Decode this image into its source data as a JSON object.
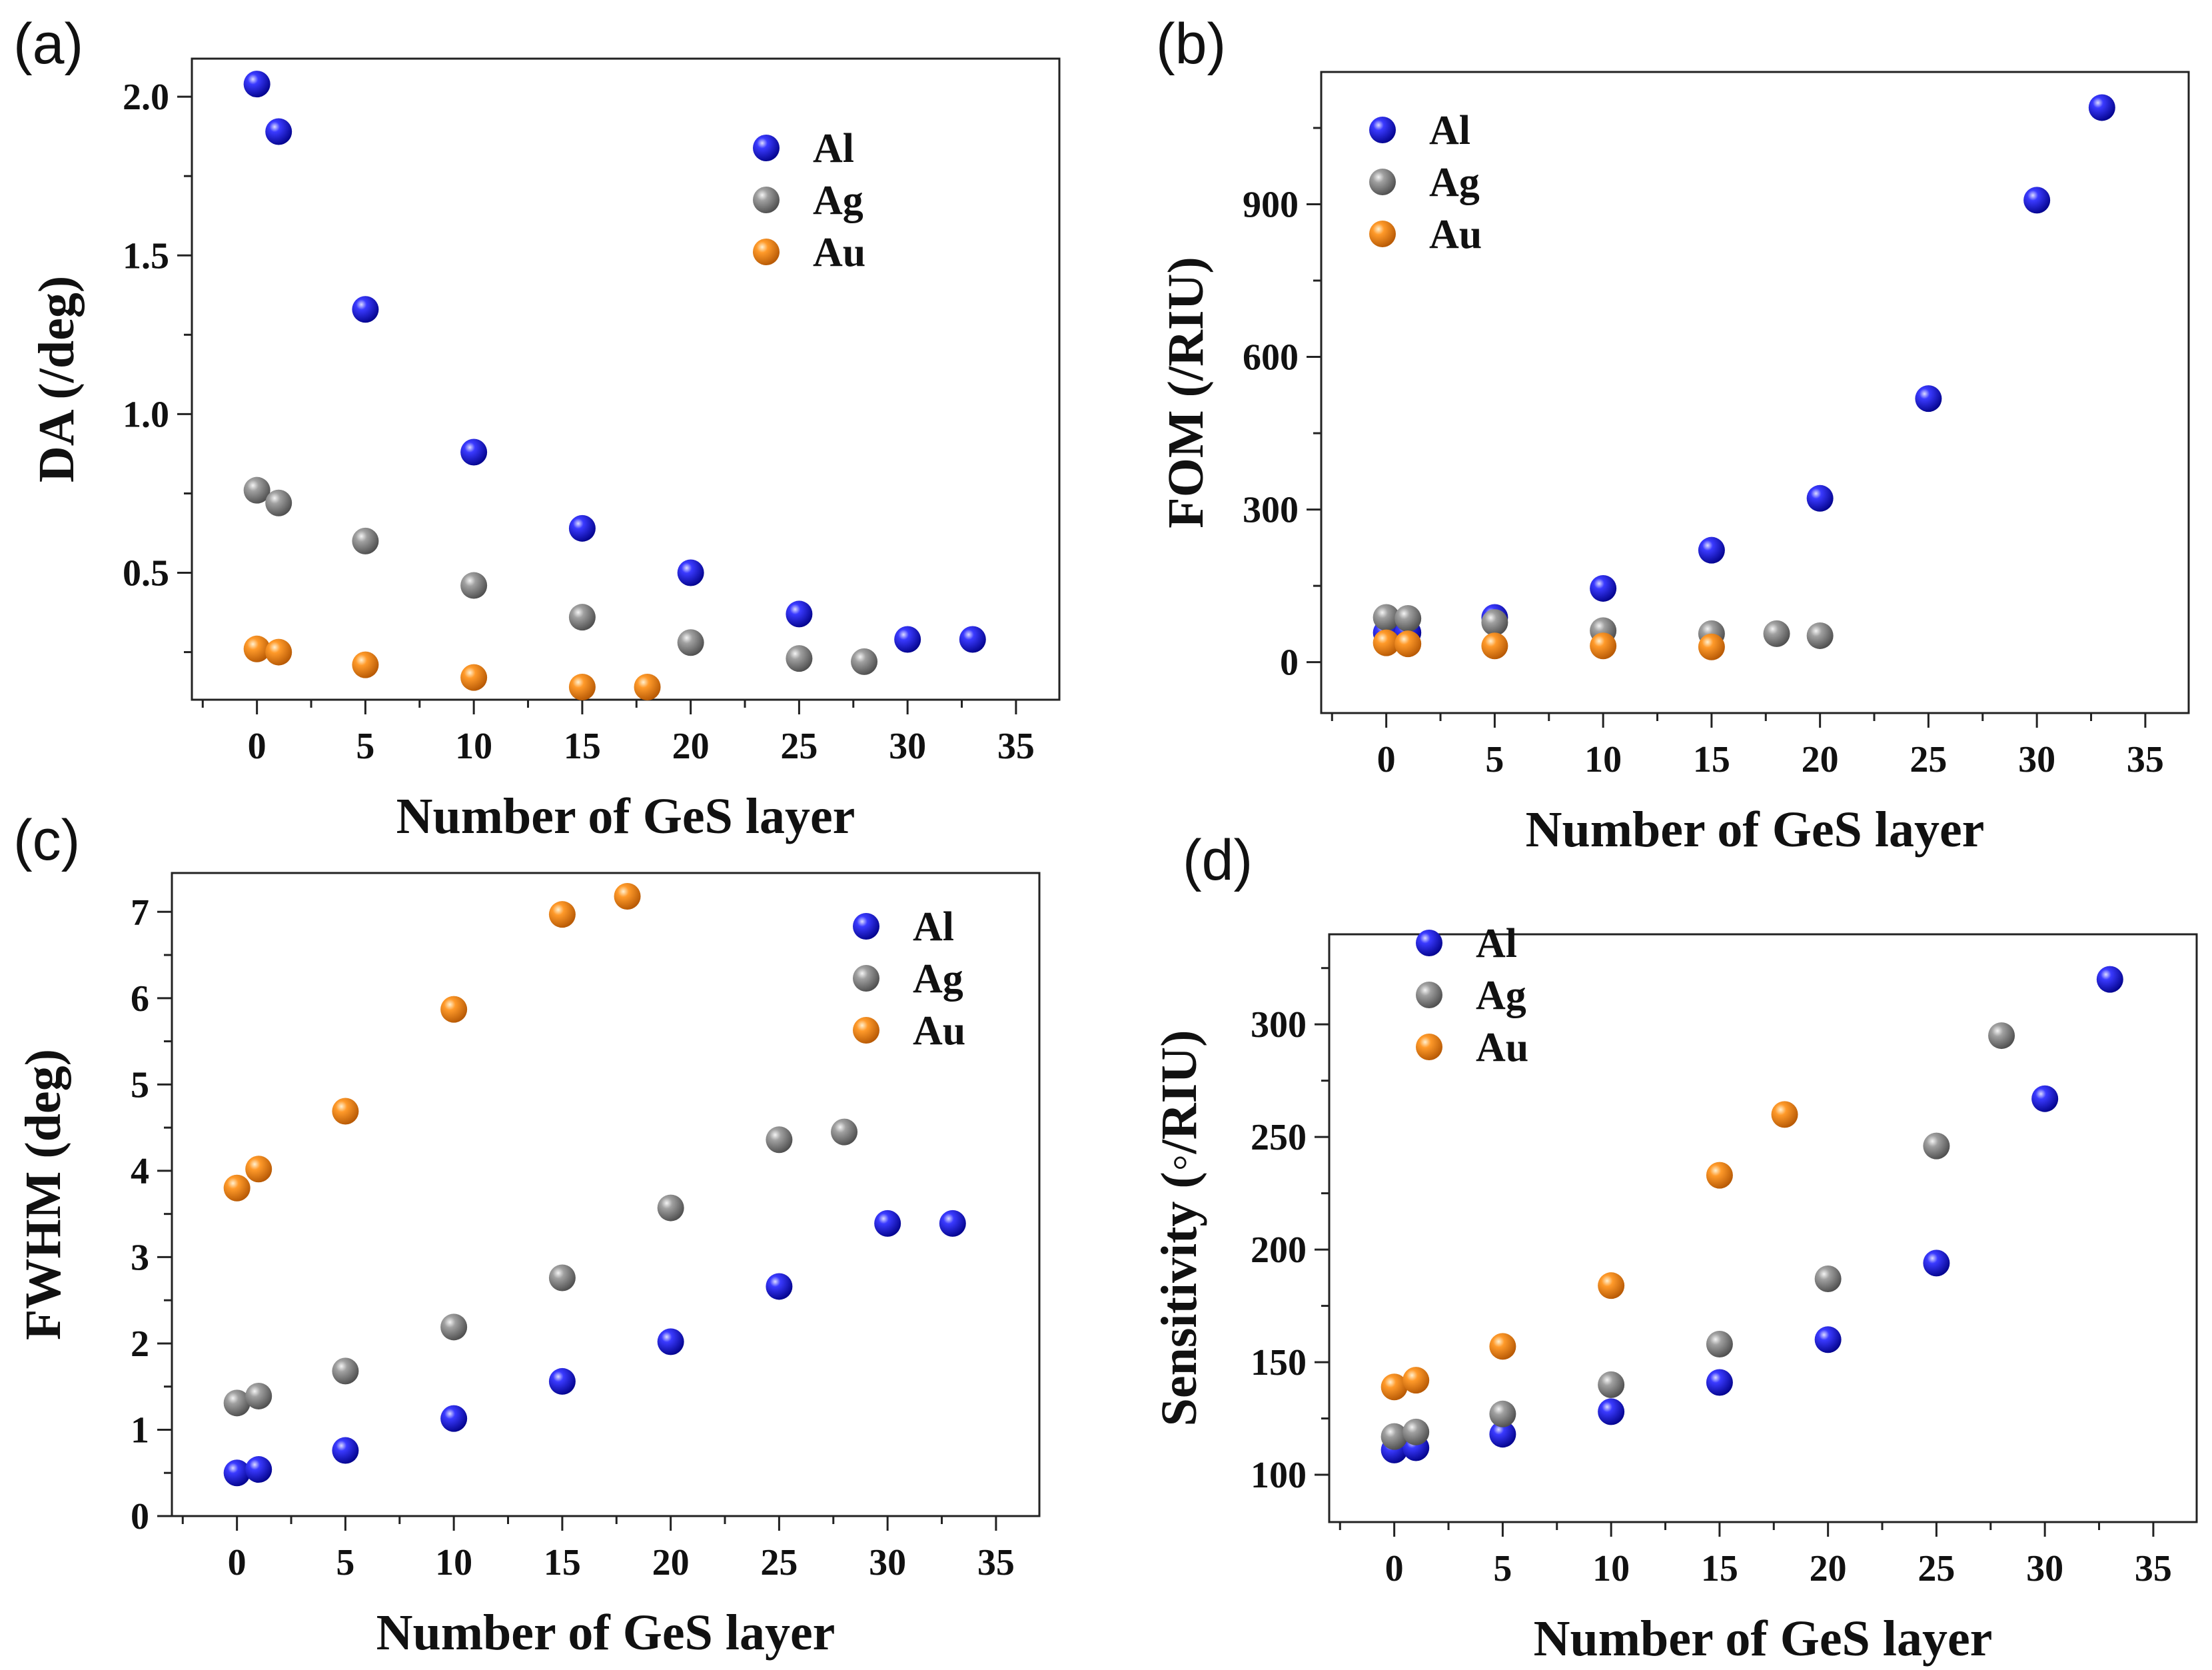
{
  "colors": {
    "Al": "#1010d8",
    "Ag": "#8a8a8a",
    "Au": "#f08a1e"
  },
  "chart_data": [
    {
      "panel": "(a)",
      "type": "scatter",
      "xlabel": "Number of GeS layer",
      "ylabel": "DA (/deg)",
      "xlim": [
        -3,
        37
      ],
      "ylim": [
        0.1,
        2.12
      ],
      "xticks": [
        0,
        5,
        10,
        15,
        20,
        25,
        30,
        35
      ],
      "yticks": [
        0.5,
        1.0,
        1.5,
        2.0
      ],
      "ytick_labels": [
        "0.5",
        "1.0",
        "1.5",
        "2.0"
      ],
      "legend_position": "top-right",
      "series": [
        {
          "name": "Al",
          "x": [
            0,
            1,
            5,
            10,
            15,
            20,
            25,
            30,
            33
          ],
          "y": [
            2.04,
            1.89,
            1.33,
            0.88,
            0.64,
            0.5,
            0.37,
            0.29,
            0.29
          ]
        },
        {
          "name": "Ag",
          "x": [
            0,
            1,
            5,
            10,
            15,
            20,
            25,
            28
          ],
          "y": [
            0.76,
            0.72,
            0.6,
            0.46,
            0.36,
            0.28,
            0.23,
            0.22
          ]
        },
        {
          "name": "Au",
          "x": [
            0,
            1,
            5,
            10,
            15,
            18
          ],
          "y": [
            0.26,
            0.25,
            0.21,
            0.17,
            0.14,
            0.14
          ]
        }
      ]
    },
    {
      "panel": "(b)",
      "type": "scatter",
      "xlabel": "Number of GeS layer",
      "ylabel": "FOM (/RIU)",
      "xlim": [
        -3,
        37
      ],
      "ylim": [
        -100,
        1160
      ],
      "xticks": [
        0,
        5,
        10,
        15,
        20,
        25,
        30,
        35
      ],
      "yticks": [
        0,
        300,
        600,
        900
      ],
      "ytick_labels": [
        "0",
        "300",
        "600",
        "900"
      ],
      "legend_position": "top-left",
      "series": [
        {
          "name": "Al",
          "x": [
            0,
            1,
            5,
            10,
            15,
            20,
            25,
            30,
            33
          ],
          "y": [
            58,
            58,
            88,
            145,
            220,
            322,
            518,
            908,
            1090
          ]
        },
        {
          "name": "Ag",
          "x": [
            0,
            1,
            5,
            10,
            15,
            18,
            20
          ],
          "y": [
            88,
            86,
            78,
            62,
            56,
            56,
            52
          ]
        },
        {
          "name": "Au",
          "x": [
            0,
            1,
            5,
            10,
            15
          ],
          "y": [
            38,
            36,
            32,
            32,
            30
          ]
        }
      ]
    },
    {
      "panel": "(c)",
      "type": "scatter",
      "xlabel": "Number of GeS layer",
      "ylabel": "FWHM (deg)",
      "xlim": [
        -3,
        37
      ],
      "ylim": [
        0,
        7.45
      ],
      "xticks": [
        0,
        5,
        10,
        15,
        20,
        25,
        30,
        35
      ],
      "yticks": [
        0,
        1,
        2,
        3,
        4,
        5,
        6,
        7
      ],
      "ytick_labels": [
        "0",
        "1",
        "2",
        "3",
        "4",
        "5",
        "6",
        "7"
      ],
      "legend_position": "top-right",
      "series": [
        {
          "name": "Al",
          "x": [
            0,
            1,
            5,
            10,
            15,
            20,
            25,
            30,
            33
          ],
          "y": [
            0.5,
            0.54,
            0.76,
            1.13,
            1.56,
            2.02,
            2.66,
            3.39,
            3.39
          ]
        },
        {
          "name": "Ag",
          "x": [
            0,
            1,
            5,
            10,
            15,
            20,
            25,
            28
          ],
          "y": [
            1.31,
            1.39,
            1.68,
            2.19,
            2.76,
            3.57,
            4.36,
            4.45
          ]
        },
        {
          "name": "Au",
          "x": [
            0,
            1,
            5,
            10,
            15,
            18
          ],
          "y": [
            3.8,
            4.02,
            4.69,
            5.87,
            6.97,
            7.18
          ]
        }
      ]
    },
    {
      "panel": "(d)",
      "type": "scatter",
      "xlabel": "Number of GeS layer",
      "ylabel": "Sensitivity (◦/RIU)",
      "xlim": [
        -3,
        37
      ],
      "ylim": [
        79,
        340
      ],
      "xticks": [
        0,
        5,
        10,
        15,
        20,
        25,
        30,
        35
      ],
      "yticks": [
        100,
        150,
        200,
        250,
        300
      ],
      "ytick_labels": [
        "100",
        "150",
        "200",
        "250",
        "300"
      ],
      "legend_position": "top-left",
      "series": [
        {
          "name": "Al",
          "x": [
            0,
            1,
            5,
            10,
            15,
            20,
            25,
            30,
            33
          ],
          "y": [
            111,
            112,
            118,
            128,
            141,
            160,
            194,
            267,
            320
          ]
        },
        {
          "name": "Ag",
          "x": [
            0,
            1,
            5,
            10,
            15,
            20,
            25,
            28
          ],
          "y": [
            117,
            119,
            127,
            140,
            158,
            187,
            246,
            295
          ]
        },
        {
          "name": "Au",
          "x": [
            0,
            1,
            5,
            10,
            15,
            18
          ],
          "y": [
            139,
            142,
            157,
            184,
            233,
            260
          ]
        }
      ]
    }
  ]
}
